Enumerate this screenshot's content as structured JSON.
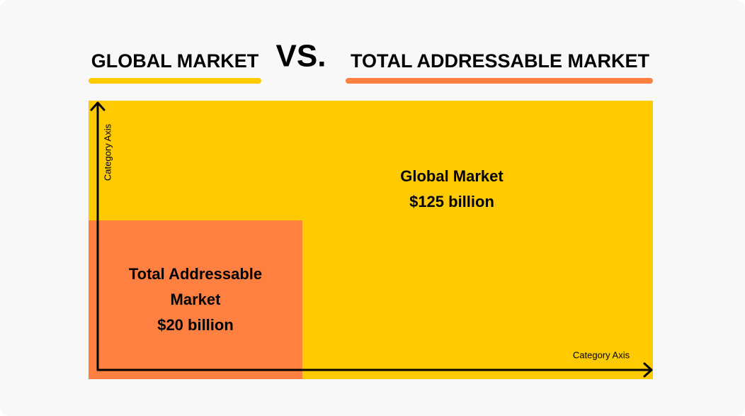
{
  "header": {
    "left": "GLOBAL MARKET",
    "vs": "VS.",
    "right": "TOTAL ADDRESSABLE MARKET"
  },
  "diagram": {
    "y_axis_label": "Category Axis",
    "x_axis_label": "Category Axis",
    "outer": {
      "label": "Global Market",
      "value": "$125 billion"
    },
    "inner": {
      "label_lines": [
        "Total Addressable",
        "Market"
      ],
      "value": "$20 billion"
    }
  }
}
